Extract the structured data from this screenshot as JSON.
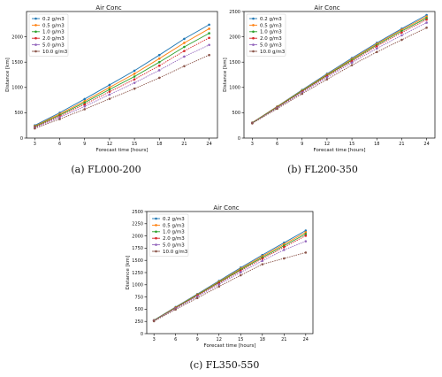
{
  "chart_data": [
    {
      "type": "line",
      "panel": "a",
      "title": "Air Conc",
      "caption": "(a)  FL000-200",
      "xlabel": "Forecast time [hours]",
      "ylabel": "Distance [km]",
      "x": [
        3,
        6,
        9,
        12,
        15,
        18,
        21,
        24
      ],
      "xticks": [
        3,
        6,
        9,
        12,
        15,
        18,
        21,
        24
      ],
      "yticks": [
        0,
        500,
        1000,
        1500,
        2000
      ],
      "ylim": [
        0,
        2500
      ],
      "legend": "upper-left",
      "series": [
        {
          "name": "0.2 g/m3",
          "color": "#1f77b4",
          "values": [
            250,
            500,
            770,
            1050,
            1330,
            1640,
            1960,
            2240
          ]
        },
        {
          "name": "0.5 g/m3",
          "color": "#ff7f0e",
          "values": [
            235,
            475,
            730,
            1000,
            1270,
            1570,
            1880,
            2160
          ]
        },
        {
          "name": "1.0 g/m3",
          "color": "#2ca02c",
          "values": [
            225,
            455,
            700,
            960,
            1215,
            1500,
            1800,
            2070
          ]
        },
        {
          "name": "2.0 g/m3",
          "color": "#d62728",
          "values": [
            215,
            435,
            665,
            915,
            1160,
            1430,
            1720,
            1980
          ]
        },
        {
          "name": "5.0 g/m3",
          "color": "#9467bd",
          "values": [
            205,
            410,
            625,
            860,
            1090,
            1340,
            1610,
            1840
          ]
        },
        {
          "name": "10.0 g/m3",
          "color": "#8c564b",
          "values": [
            190,
            375,
            570,
            775,
            975,
            1190,
            1420,
            1640
          ]
        }
      ]
    },
    {
      "type": "line",
      "panel": "b",
      "title": "Air Conc",
      "caption": "(b)  FL200-350",
      "xlabel": "Forecast time [hours]",
      "ylabel": "Distance [km]",
      "x": [
        3,
        6,
        9,
        12,
        15,
        18,
        21,
        24
      ],
      "xticks": [
        3,
        6,
        9,
        12,
        15,
        18,
        21,
        24
      ],
      "yticks": [
        0,
        500,
        1000,
        1500,
        2000,
        2500
      ],
      "ylim": [
        0,
        2500
      ],
      "legend": "upper-left",
      "series": [
        {
          "name": "0.2 g/m3",
          "color": "#1f77b4",
          "values": [
            305,
            625,
            950,
            1270,
            1580,
            1880,
            2160,
            2430
          ]
        },
        {
          "name": "0.5 g/m3",
          "color": "#ff7f0e",
          "values": [
            303,
            620,
            940,
            1255,
            1560,
            1860,
            2140,
            2400
          ]
        },
        {
          "name": "1.0 g/m3",
          "color": "#2ca02c",
          "values": [
            300,
            612,
            930,
            1240,
            1540,
            1840,
            2115,
            2370
          ]
        },
        {
          "name": "2.0 g/m3",
          "color": "#d62728",
          "values": [
            298,
            605,
            918,
            1225,
            1520,
            1815,
            2085,
            2340
          ]
        },
        {
          "name": "5.0 g/m3",
          "color": "#9467bd",
          "values": [
            295,
            595,
            900,
            1200,
            1490,
            1770,
            2030,
            2280
          ]
        },
        {
          "name": "10.0 g/m3",
          "color": "#8c564b",
          "values": [
            290,
            580,
            875,
            1160,
            1440,
            1700,
            1940,
            2180
          ]
        }
      ]
    },
    {
      "type": "line",
      "panel": "c",
      "title": "Air Conc",
      "caption": "(c)  FL350-550",
      "xlabel": "Forecast time [hours]",
      "ylabel": "Distance [km]",
      "x": [
        3,
        6,
        9,
        12,
        15,
        18,
        21,
        24
      ],
      "xticks": [
        3,
        6,
        9,
        12,
        15,
        18,
        21,
        24
      ],
      "yticks": [
        0,
        250,
        500,
        750,
        1000,
        1250,
        1500,
        1750,
        2000,
        2250,
        2500
      ],
      "ylim": [
        0,
        2500
      ],
      "legend": "upper-left",
      "series": [
        {
          "name": "0.2 g/m3",
          "color": "#1f77b4",
          "values": [
            275,
            545,
            810,
            1080,
            1350,
            1610,
            1860,
            2110
          ]
        },
        {
          "name": "0.5 g/m3",
          "color": "#ff7f0e",
          "values": [
            272,
            538,
            800,
            1065,
            1330,
            1585,
            1830,
            2075
          ]
        },
        {
          "name": "1.0 g/m3",
          "color": "#2ca02c",
          "values": [
            270,
            532,
            790,
            1050,
            1310,
            1560,
            1800,
            2040
          ]
        },
        {
          "name": "2.0 g/m3",
          "color": "#d62728",
          "values": [
            268,
            525,
            780,
            1035,
            1290,
            1535,
            1770,
            2005
          ]
        },
        {
          "name": "5.0 g/m3",
          "color": "#9467bd",
          "values": [
            263,
            515,
            760,
            1010,
            1255,
            1490,
            1715,
            1890
          ]
        },
        {
          "name": "10.0 g/m3",
          "color": "#8c564b",
          "values": [
            255,
            495,
            730,
            965,
            1195,
            1420,
            1540,
            1660
          ]
        }
      ]
    }
  ]
}
